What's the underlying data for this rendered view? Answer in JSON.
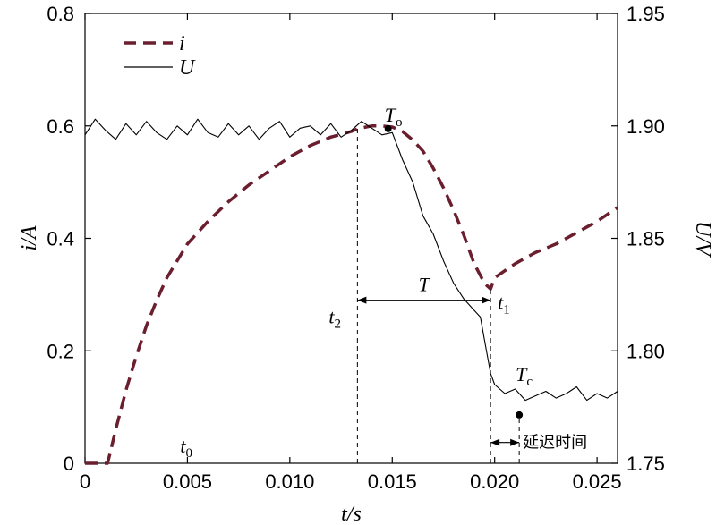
{
  "chart_data": {
    "type": "line",
    "title": "",
    "xlabel": "t/s",
    "ylabel_left": "i/A",
    "ylabel_right": "U/V",
    "xlim": [
      0,
      0.026
    ],
    "ylim_left": [
      0,
      0.8
    ],
    "ylim_right": [
      1.75,
      1.95
    ],
    "x_ticks": [
      "0",
      "0.005",
      "0.010",
      "0.015",
      "0.020",
      "0.025"
    ],
    "x_tick_values": [
      0,
      0.005,
      0.01,
      0.015,
      0.02,
      0.025
    ],
    "y_left_ticks": [
      "0",
      "0.2",
      "0.4",
      "0.6",
      "0.8"
    ],
    "y_left_tick_values": [
      0,
      0.2,
      0.4,
      0.6,
      0.8
    ],
    "y_right_ticks": [
      "1.75",
      "1.80",
      "1.85",
      "1.90",
      "1.95"
    ],
    "y_right_tick_values": [
      1.75,
      1.8,
      1.85,
      1.9,
      1.95
    ],
    "grid": false,
    "legend_position": "top-left",
    "series": [
      {
        "name": "i",
        "axis": "left",
        "style": "dashed",
        "color": "#6b1e2e",
        "x": [
          0,
          0.0011,
          0.0013,
          0.0015,
          0.002,
          0.0025,
          0.003,
          0.0035,
          0.004,
          0.005,
          0.006,
          0.007,
          0.008,
          0.009,
          0.01,
          0.011,
          0.012,
          0.013,
          0.0133,
          0.014,
          0.0145,
          0.015,
          0.0155,
          0.016,
          0.0165,
          0.017,
          0.0175,
          0.018,
          0.0185,
          0.019,
          0.0195,
          0.0198,
          0.02,
          0.021,
          0.022,
          0.023,
          0.024,
          0.025,
          0.026
        ],
        "values": [
          0,
          0,
          0.03,
          0.06,
          0.13,
          0.19,
          0.245,
          0.29,
          0.33,
          0.39,
          0.43,
          0.465,
          0.495,
          0.52,
          0.545,
          0.565,
          0.58,
          0.59,
          0.595,
          0.6,
          0.6,
          0.598,
          0.59,
          0.575,
          0.555,
          0.525,
          0.49,
          0.45,
          0.405,
          0.355,
          0.32,
          0.31,
          0.33,
          0.355,
          0.375,
          0.39,
          0.41,
          0.43,
          0.455
        ]
      },
      {
        "name": "U",
        "axis": "right",
        "style": "solid",
        "color": "#000000",
        "x": [
          0,
          0.0005,
          0.001,
          0.0015,
          0.002,
          0.0025,
          0.003,
          0.0035,
          0.004,
          0.0045,
          0.005,
          0.0055,
          0.006,
          0.0065,
          0.007,
          0.0075,
          0.008,
          0.0085,
          0.009,
          0.0095,
          0.01,
          0.0105,
          0.011,
          0.0115,
          0.012,
          0.0125,
          0.013,
          0.0135,
          0.014,
          0.0145,
          0.015,
          0.0155,
          0.016,
          0.0165,
          0.017,
          0.0175,
          0.018,
          0.0185,
          0.019,
          0.0193,
          0.0196,
          0.0198,
          0.02,
          0.0205,
          0.021,
          0.0215,
          0.022,
          0.0225,
          0.023,
          0.0235,
          0.024,
          0.0245,
          0.025,
          0.0255,
          0.026
        ],
        "values": [
          1.896,
          1.903,
          1.898,
          1.894,
          1.901,
          1.896,
          1.902,
          1.897,
          1.894,
          1.9,
          1.896,
          1.903,
          1.897,
          1.895,
          1.901,
          1.896,
          1.9,
          1.894,
          1.899,
          1.902,
          1.895,
          1.899,
          1.9,
          1.896,
          1.901,
          1.895,
          1.898,
          1.902,
          1.899,
          1.896,
          1.897,
          1.885,
          1.875,
          1.86,
          1.852,
          1.84,
          1.83,
          1.823,
          1.818,
          1.815,
          1.8,
          1.79,
          1.785,
          1.781,
          1.783,
          1.778,
          1.78,
          1.782,
          1.779,
          1.781,
          1.784,
          1.778,
          1.781,
          1.779,
          1.782
        ]
      }
    ],
    "annotations": {
      "T_o": {
        "main": "T",
        "sub": "o",
        "x": 0.0148,
        "y_left": 0.595
      },
      "T_c": {
        "main": "T",
        "sub": "c",
        "x": 0.0212,
        "y_right": 1.7715
      },
      "t0": {
        "main": "t",
        "sub": "0",
        "x": 0.005,
        "y_left": 0.0
      },
      "t1": {
        "main": "t",
        "sub": "1",
        "x": 0.0198,
        "y_left": 0.29
      },
      "t2": {
        "main": "t",
        "sub": "2",
        "x": 0.0133,
        "y_left": 0.29
      },
      "T_span": {
        "label": "T",
        "x_start": 0.0133,
        "x_end": 0.0198,
        "y_left": 0.29
      },
      "delay": {
        "label": "延迟时间",
        "x_start": 0.0198,
        "x_end": 0.0212,
        "y_left": 0.037
      },
      "dashed_vertical_x": [
        0.0133,
        0.0198,
        0.0212
      ]
    }
  }
}
